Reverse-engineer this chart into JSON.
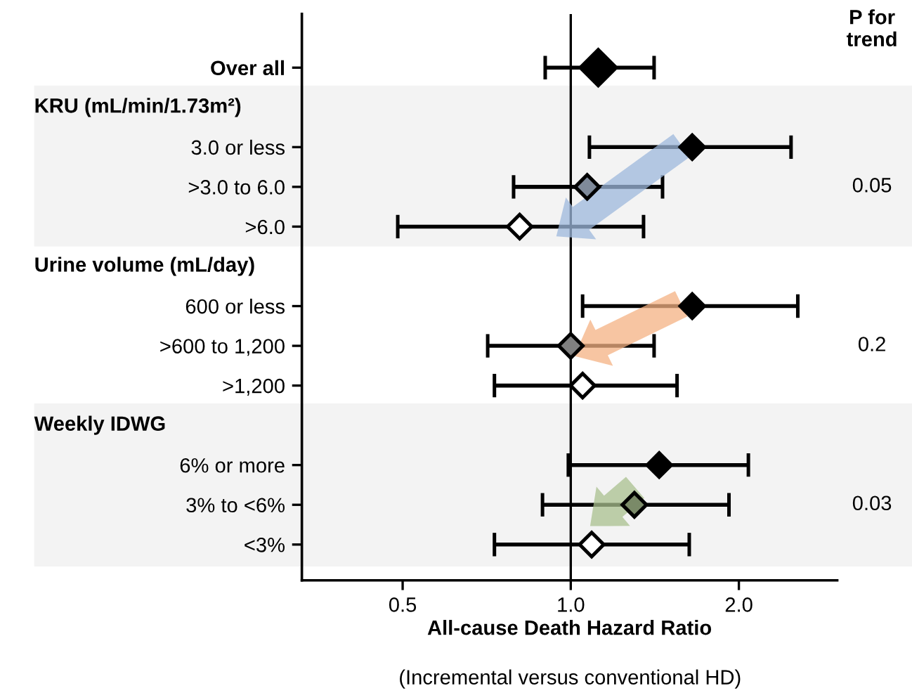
{
  "chart_data": {
    "type": "scatter",
    "orientation": "horizontal",
    "xlabel": "All-cause Death Hazard Ratio",
    "categories": [
      "Over all",
      null,
      "3.0 or less",
      ">3.0 to 6.0",
      ">6.0",
      null,
      "600 or less",
      ">600 to 1,200",
      ">1,200",
      null,
      "6% or more",
      "3% to <6%",
      "<3%"
    ],
    "values": [
      1.12,
      null,
      1.65,
      1.07,
      0.81,
      null,
      1.65,
      1.0,
      1.05,
      null,
      1.44,
      1.3,
      1.09
    ],
    "errors": [
      [
        0.9,
        1.41
      ],
      null,
      [
        1.08,
        2.48
      ],
      [
        0.79,
        1.46
      ],
      [
        0.49,
        1.35
      ],
      null,
      [
        1.05,
        2.55
      ],
      [
        0.71,
        1.41
      ],
      [
        0.73,
        1.55
      ],
      null,
      [
        0.99,
        2.08
      ],
      [
        0.89,
        1.92
      ],
      [
        0.73,
        1.63
      ]
    ],
    "sizes": [
      1,
      null,
      0.45,
      0.45,
      0.45,
      null,
      0.45,
      0.45,
      0.45,
      null,
      0.45,
      0.45,
      0.45
    ],
    "colors": [
      "#000000",
      null,
      "#000000",
      "#7f8a9a",
      "#ffffff",
      null,
      "#000000",
      "#808080",
      "#ffffff",
      null,
      "#000000",
      "#7a8a68",
      "#ffffff"
    ],
    "marker": "diamond",
    "log": "x",
    "xlim": [
      0.33,
      3.0
    ],
    "xticks": [
      {
        "value": 0.5,
        "label": "0.5"
      },
      {
        "value": 1.0,
        "label": "1.0"
      },
      {
        "value": 2.0,
        "label": "2.0"
      }
    ],
    "ref_lines": [
      {
        "axis": "x",
        "value": 1.0,
        "color": "#000000"
      }
    ],
    "legend": false,
    "grid": false,
    "annotations": [
      "KRU (mL/min/1.73m²)",
      "Urine volume (mL/day)",
      "Weekly IDWG",
      "P for trend",
      "0.05",
      "0.2",
      "0.03",
      "(Incremental versus conventional HD)"
    ]
  }
}
